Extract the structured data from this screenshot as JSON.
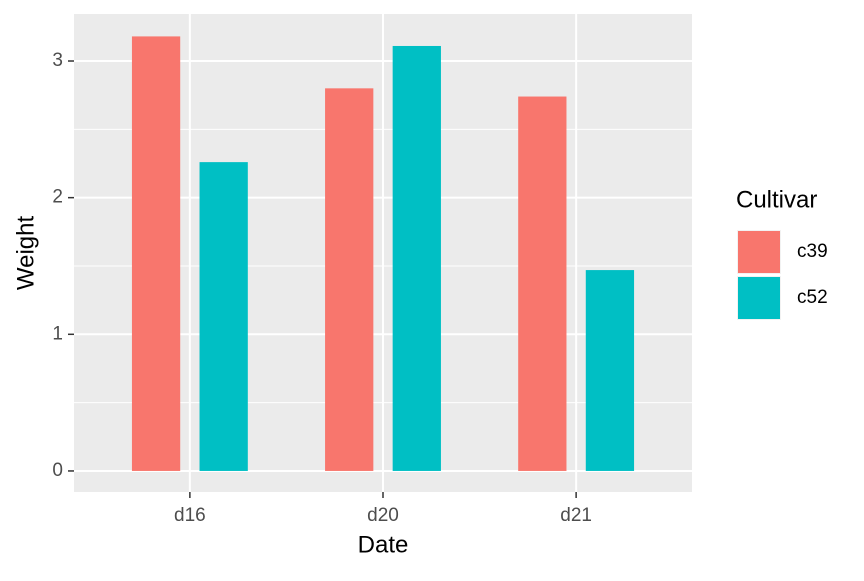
{
  "chart_data": {
    "type": "bar",
    "xlabel": "Date",
    "ylabel": "Weight",
    "categories": [
      "d16",
      "d20",
      "d21"
    ],
    "legend_title": "Cultivar",
    "series": [
      {
        "name": "c39",
        "color": "#F8766D",
        "values": [
          3.18,
          2.8,
          2.74
        ]
      },
      {
        "name": "c52",
        "color": "#00BFC4",
        "values": [
          2.26,
          3.11,
          1.47
        ]
      }
    ],
    "ylim": [
      -0.154,
      3.344
    ],
    "yticks": [
      0,
      1,
      2,
      3
    ],
    "grid": true,
    "legend": "right"
  }
}
